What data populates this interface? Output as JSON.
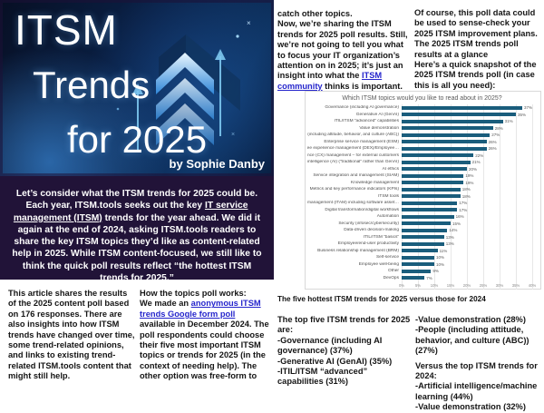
{
  "banner": {
    "title_line1": "ITSM",
    "title_line2": "Trends",
    "title_line3": "for 2025",
    "byline": "by Sophie Danby",
    "bg_color": "#0a2147",
    "accent_color": "#7ec8f0"
  },
  "intro": {
    "before_link": "Let’s consider what the ITSM trends for 2025 could be. Each year, ITSM.tools seeks out the key ",
    "link": "IT service management (ITSM)",
    "after_link": " trends for the year ahead. We did it again at the end of 2024, asking ITSM.tools readers to share the key ITSM topics they’d like as content-related help in 2025. While ITSM content-focused, we still like to think the quick poll results reflect “the hottest ITSM trends for 2025.”"
  },
  "columns": {
    "col1": "This article shares the results of the 2025 content poll based on 176 responses. There are also insights into how ITSM trends have changed over time, some trend-related opinions, and links to existing trend-related ITSM.tools content that might still help.",
    "col2_heading": "How the topics poll works:",
    "col2_before_link": "We made an ",
    "col2_link": "anonymous ITSM trends Google form poll",
    "col2_after_link": " available in December 2024. The poll respondents could choose their five most important ITSM topics or trends for 2025 (in the context of needing help). The other option was free-form to",
    "col3_line1": "catch other topics.",
    "col3_before_link": "Now, we’re sharing the ITSM trends for 2025 poll results. Still, we’re not going to tell you what to focus your IT organization’s attention on in 2025; it’s just an insight into what the ",
    "col3_link": "ITSM community",
    "col3_after_link": " thinks is important.",
    "col4_para1": "Of course, this poll data could be used to sense-check your 2025 ITSM improvement plans.",
    "col4_para2": "The 2025 ITSM trends poll results at a glance",
    "col4_para3": "Here’s a quick snapshot of the 2025 ITSM trends poll (in case this is all you need):"
  },
  "chart_data": {
    "type": "bar",
    "orientation": "horizontal",
    "title": "Which ITSM topics would you like to read about in 2025?",
    "categories": [
      "Governance (including AI governance)",
      "Generative AI (GenAI)",
      "ITIL/ITSM “advanced” capabilities",
      "Value demonstration",
      "People (including attitude, behavior, and culture (ABC))",
      "Enterprise service management (ESM)",
      "Digital employee experience management (DEX)/Employee…",
      "Customer experience (CX) management – for external customers",
      "Artificial intelligence (AI) (“traditional” rather than GenAI)",
      "AI ethics",
      "Service integration and management (SIAM)",
      "Knowledge management",
      "Metrics and key performance indicators (KPIs)",
      "ITSM tools",
      "IT asset management (ITAM) including software asset…",
      "Digital transformation/digital workflows",
      "Automation",
      "Security (infosec/cybersecurity)",
      "Data-driven decision-making",
      "ITIL/ITSM “basics”",
      "Employee/end-user productivity",
      "Business relationship management (BRM)",
      "Self-service",
      "Employee well-being",
      "Other",
      "DevOps"
    ],
    "values": [
      37,
      35,
      31,
      28,
      27,
      26,
      26,
      22,
      21,
      20,
      19,
      19,
      18,
      18,
      17,
      17,
      16,
      15,
      14,
      13,
      13,
      11,
      10,
      10,
      9,
      7
    ],
    "value_suffix": "%",
    "xlim": [
      0,
      40
    ],
    "x_ticks": [
      "0%",
      "5%",
      "10%",
      "15%",
      "20%",
      "25%",
      "30%",
      "35%",
      "40%"
    ],
    "bar_color": "#1a5d7c",
    "grid": true,
    "legend": false
  },
  "chart_caption": "The five hottest ITSM trends for 2025 versus those for 2024",
  "summary": {
    "col5_heading": "The top five ITSM trends for 2025 are:",
    "col5_items": [
      "-Governance (including AI governance) (37%)",
      "-Generative AI (GenAI) (35%)",
      "-ITIL/ITSM “advanced” capabilities (31%)"
    ],
    "col6_items": [
      "-Value demonstration (28%)",
      "-People (including attitude, behavior, and culture (ABC)) (27%)"
    ],
    "col6_heading2": "Versus the top ITSM trends for 2024:",
    "col6_items2": [
      "-Artificial intelligence/machine learning (44%)",
      "-Value demonstration (32%)"
    ]
  }
}
